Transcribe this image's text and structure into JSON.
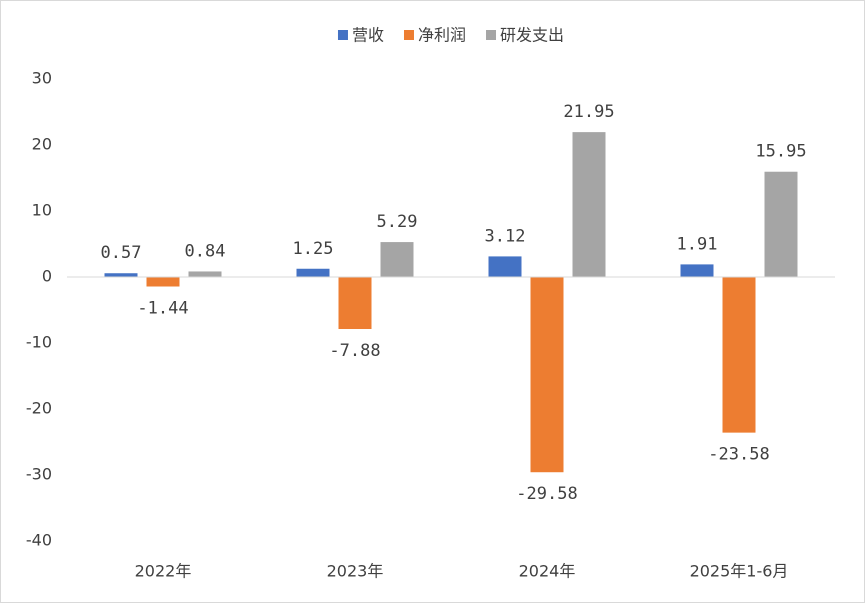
{
  "chart_data": {
    "type": "bar",
    "categories": [
      "2022年",
      "2023年",
      "2024年",
      "2025年1-6月"
    ],
    "series": [
      {
        "name": "营收",
        "color": "#4472c4",
        "values": [
          0.57,
          1.25,
          3.12,
          1.91
        ]
      },
      {
        "name": "净利润",
        "color": "#ed7d31",
        "values": [
          -1.44,
          -7.88,
          -29.58,
          -23.58
        ]
      },
      {
        "name": "研发支出",
        "color": "#a5a5a5",
        "values": [
          0.84,
          5.29,
          21.95,
          15.95
        ]
      }
    ],
    "ylim": [
      -40,
      30
    ],
    "yticks": [
      -40,
      -30,
      -20,
      -10,
      0,
      10,
      20,
      30
    ],
    "grid": false,
    "legend": "top",
    "data_labels": true
  }
}
